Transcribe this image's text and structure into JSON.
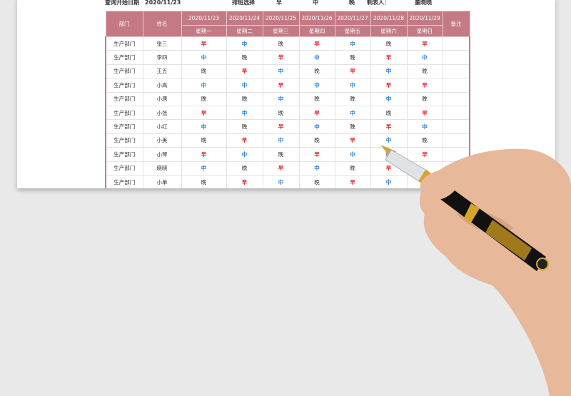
{
  "header": {
    "query_label": "查询开始日期",
    "query_date": "2020/11/23",
    "shift_select_label": "排班选择",
    "shift_options": [
      "早",
      "中",
      "晚"
    ],
    "author_label": "制表人：",
    "author": "董晓晓"
  },
  "table": {
    "col_dept": "部门",
    "col_name": "姓名",
    "col_note": "备注",
    "dates": [
      "2020/11/23",
      "2020/11/24",
      "2020/11/25",
      "2020/11/26",
      "2020/11/27",
      "2020/11/28",
      "2020/11/29"
    ],
    "weekdays": [
      "星期一",
      "星期二",
      "星期三",
      "星期四",
      "星期五",
      "星期六",
      "星期日"
    ],
    "rows": [
      {
        "dept": "生产部门",
        "name": "张三",
        "shifts": [
          "早",
          "中",
          "晚",
          "早",
          "中",
          "晚",
          "早"
        ]
      },
      {
        "dept": "生产部门",
        "name": "李四",
        "shifts": [
          "中",
          "晚",
          "早",
          "中",
          "晚",
          "早",
          "中"
        ]
      },
      {
        "dept": "生产部门",
        "name": "王五",
        "shifts": [
          "晚",
          "早",
          "中",
          "晚",
          "早",
          "中",
          "晚"
        ]
      },
      {
        "dept": "生产部门",
        "name": "小高",
        "shifts": [
          "中",
          "中",
          "早",
          "中",
          "中",
          "早",
          "早"
        ]
      },
      {
        "dept": "生产部门",
        "name": "小唐",
        "shifts": [
          "晚",
          "晚",
          "中",
          "晚",
          "晚",
          "中",
          "晚"
        ]
      },
      {
        "dept": "生产部门",
        "name": "小张",
        "shifts": [
          "早",
          "中",
          "晚",
          "早",
          "中",
          "晚",
          "早"
        ]
      },
      {
        "dept": "生产部门",
        "name": "小红",
        "shifts": [
          "中",
          "晚",
          "早",
          "中",
          "晚",
          "早",
          "中"
        ]
      },
      {
        "dept": "生产部门",
        "name": "小美",
        "shifts": [
          "晚",
          "早",
          "中",
          "晚",
          "早",
          "中",
          "晚"
        ]
      },
      {
        "dept": "生产部门",
        "name": "小琴",
        "shifts": [
          "早",
          "中",
          "晚",
          "早",
          "中",
          "晚",
          "早"
        ]
      },
      {
        "dept": "生产部门",
        "name": "晓晓",
        "shifts": [
          "中",
          "晚",
          "早",
          "中",
          "晚",
          "早",
          ""
        ]
      },
      {
        "dept": "生产部门",
        "name": "小单",
        "shifts": [
          "晚",
          "早",
          "中",
          "晚",
          "早",
          "中",
          ""
        ]
      }
    ]
  },
  "colors": {
    "header": "#c47a84",
    "early": "#e0202a",
    "mid": "#2a7fd0",
    "late": "#333333"
  }
}
